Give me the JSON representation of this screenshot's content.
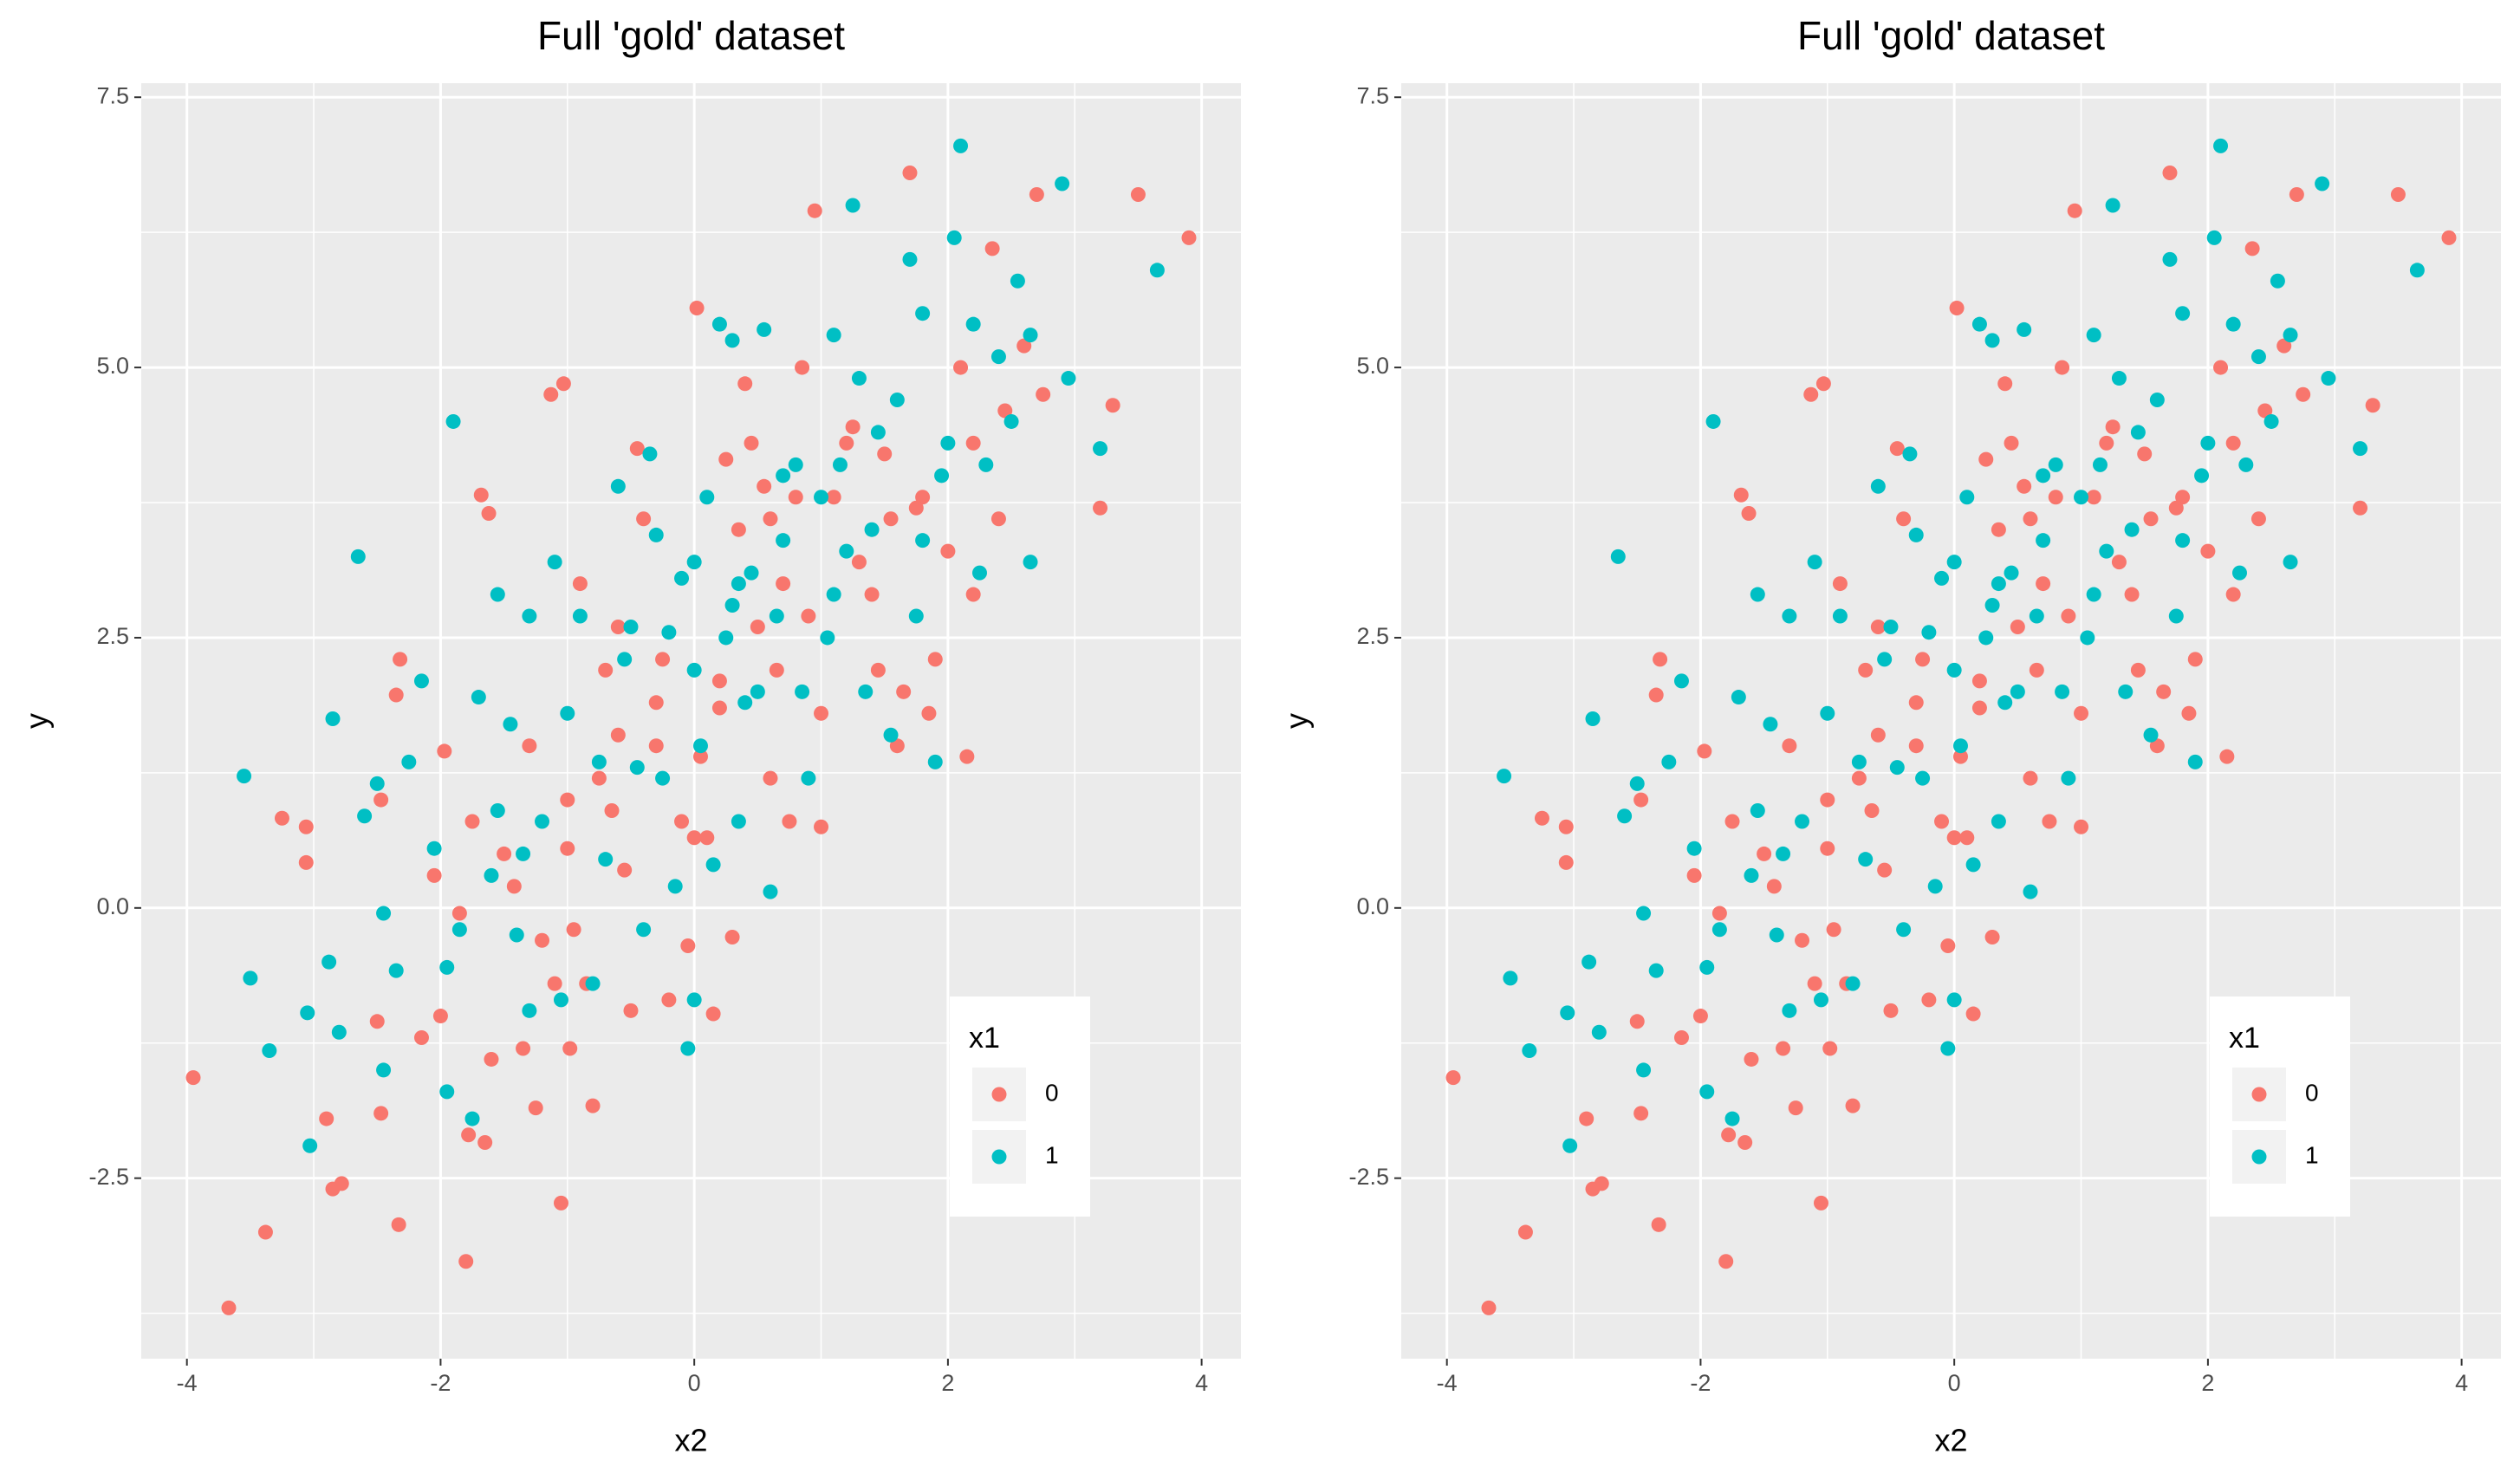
{
  "chart_data": [
    {
      "type": "scatter",
      "title": "Full 'gold' dataset",
      "x_label": "x2",
      "y_label": "y",
      "legend_title": "x1",
      "legend_position": "bottom-right",
      "grid": true,
      "xlim": [
        -4.36,
        4.31
      ],
      "ylim": [
        -4.17,
        7.63
      ],
      "xticks": [
        -4,
        -2,
        0,
        2,
        4
      ],
      "yticks": [
        -2.5,
        {
          "value": 0,
          "label": "0.0"
        },
        2.5,
        {
          "value": 5,
          "label": "5.0"
        },
        7.5
      ],
      "series": [
        {
          "name": "0",
          "color": "#F8766D",
          "x": [
            -3.95,
            -3.67,
            -3.38,
            -3.25,
            -3.06,
            -3.06,
            -2.9,
            -2.85,
            -2.78,
            -2.5,
            -2.47,
            -2.47,
            -2.33,
            -2.32,
            -2.35,
            -2.15,
            -2.0,
            -1.97,
            -1.8,
            -1.78,
            -1.65,
            -1.68,
            -1.62,
            -1.6,
            -1.5,
            -1.42,
            -1.35,
            -1.25,
            -1.2,
            -1.13,
            -1.1,
            -1.05,
            -1.03,
            -1.0,
            -0.98,
            -0.95,
            -0.85,
            -0.8,
            -0.75,
            -0.7,
            -0.6,
            -0.55,
            -0.5,
            -0.45,
            -0.4,
            -0.3,
            -0.25,
            -0.2,
            -0.1,
            -0.05,
            0.0,
            0.02,
            0.05,
            0.1,
            0.15,
            0.2,
            0.25,
            0.3,
            0.35,
            0.4,
            0.45,
            0.5,
            0.55,
            0.6,
            0.65,
            0.7,
            0.75,
            0.8,
            0.85,
            0.9,
            0.95,
            1.0,
            1.1,
            1.2,
            1.3,
            1.4,
            1.45,
            1.5,
            1.55,
            1.6,
            1.65,
            1.7,
            1.8,
            1.85,
            1.9,
            2.0,
            2.1,
            2.15,
            2.2,
            2.35,
            2.4,
            2.45,
            2.6,
            2.7,
            2.75,
            3.2,
            3.3,
            3.5,
            3.9,
            -1.75,
            -0.9,
            -0.3,
            0.6,
            1.0,
            -1.3,
            -1.0,
            -0.6,
            0.2,
            1.75,
            2.2,
            -2.05,
            -1.85,
            -0.65,
            1.25
          ],
          "y": [
            -1.57,
            -3.7,
            -3.0,
            0.83,
            0.42,
            0.75,
            -1.95,
            -2.6,
            -2.55,
            -1.05,
            -1.9,
            1.0,
            -2.93,
            2.3,
            1.97,
            -1.2,
            -1.0,
            1.45,
            -3.27,
            -2.1,
            -2.17,
            3.82,
            3.65,
            -1.4,
            0.5,
            0.2,
            -1.3,
            -1.85,
            -0.3,
            4.75,
            -0.7,
            -2.73,
            4.85,
            0.55,
            -1.3,
            -0.2,
            -0.7,
            -1.83,
            1.2,
            2.2,
            1.6,
            0.35,
            -0.95,
            4.25,
            3.6,
            1.9,
            2.3,
            -0.85,
            0.8,
            -0.35,
            0.65,
            5.55,
            1.4,
            0.65,
            -0.98,
            1.85,
            4.15,
            -0.27,
            3.5,
            4.85,
            4.3,
            2.6,
            3.9,
            1.2,
            2.2,
            3.0,
            0.8,
            3.8,
            5.0,
            2.7,
            6.45,
            0.75,
            3.8,
            4.3,
            3.2,
            2.9,
            2.2,
            4.2,
            3.6,
            1.5,
            2.0,
            6.8,
            3.8,
            1.8,
            2.3,
            3.3,
            5.0,
            1.4,
            4.3,
            6.1,
            3.6,
            4.6,
            5.2,
            6.6,
            4.75,
            3.7,
            4.65,
            6.6,
            6.2,
            0.8,
            3.0,
            1.5,
            3.6,
            1.8,
            1.5,
            1.0,
            2.6,
            2.1,
            3.7,
            2.9,
            0.3,
            -0.05,
            0.9,
            4.45
          ]
        },
        {
          "name": "1",
          "color": "#00BFC4",
          "x": [
            -3.55,
            -3.5,
            -3.35,
            -3.05,
            -3.03,
            -2.85,
            -2.88,
            -2.8,
            -2.65,
            -2.5,
            -2.45,
            -2.45,
            -2.35,
            -2.25,
            -2.15,
            -2.05,
            -1.95,
            -1.95,
            -1.9,
            -1.85,
            -1.75,
            -1.7,
            -1.6,
            -1.55,
            -1.45,
            -1.4,
            -1.3,
            -1.3,
            -1.2,
            -1.1,
            -1.05,
            -1.0,
            -0.9,
            -0.8,
            -0.7,
            -0.6,
            -0.55,
            -0.45,
            -0.4,
            -0.35,
            -0.3,
            -0.2,
            -0.15,
            -0.1,
            -0.05,
            0.0,
            0.0,
            0.05,
            0.1,
            0.15,
            0.2,
            0.25,
            0.3,
            0.35,
            0.4,
            0.45,
            0.55,
            0.6,
            0.65,
            0.7,
            0.8,
            0.85,
            0.9,
            1.0,
            1.05,
            1.1,
            1.15,
            1.2,
            1.25,
            1.3,
            1.35,
            1.45,
            1.55,
            1.6,
            1.7,
            1.75,
            1.8,
            1.95,
            2.05,
            2.1,
            2.2,
            2.25,
            2.3,
            2.4,
            2.5,
            2.55,
            2.65,
            2.65,
            2.9,
            2.95,
            3.2,
            3.65,
            0.3,
            -1.35,
            -0.75,
            0.0,
            0.7,
            1.4,
            2.0,
            -2.6,
            -1.55,
            -0.5,
            0.5,
            1.1,
            1.9,
            -0.25,
            0.35,
            1.8
          ],
          "y": [
            1.22,
            -0.65,
            -1.32,
            -0.97,
            -2.2,
            1.75,
            -0.5,
            -1.15,
            3.25,
            1.15,
            -1.5,
            -0.05,
            -0.58,
            1.35,
            2.1,
            0.55,
            -0.55,
            -1.7,
            4.5,
            -0.2,
            -1.95,
            1.95,
            0.3,
            2.9,
            1.7,
            -0.25,
            -0.95,
            2.7,
            0.8,
            3.2,
            -0.85,
            1.8,
            2.7,
            -0.7,
            0.45,
            3.9,
            2.3,
            1.3,
            -0.2,
            4.2,
            3.45,
            2.55,
            0.2,
            3.05,
            -1.3,
            2.2,
            -0.85,
            1.5,
            3.8,
            0.4,
            5.4,
            2.5,
            2.8,
            0.8,
            1.9,
            3.1,
            5.35,
            0.15,
            2.7,
            3.4,
            4.1,
            2.0,
            1.2,
            3.8,
            2.5,
            5.3,
            4.1,
            3.3,
            6.5,
            4.9,
            2.0,
            4.4,
            1.6,
            4.7,
            6.0,
            2.7,
            5.5,
            4.0,
            6.2,
            7.05,
            5.4,
            3.1,
            4.1,
            5.1,
            4.5,
            5.8,
            5.3,
            3.2,
            6.7,
            4.9,
            4.25,
            5.9,
            5.25,
            0.5,
            1.35,
            3.2,
            4.0,
            3.5,
            4.3,
            0.85,
            0.9,
            2.6,
            2.0,
            2.9,
            1.35,
            1.2,
            3.0,
            3.4
          ]
        }
      ]
    },
    {
      "type": "scatter",
      "title": "Full 'gold' dataset",
      "x_label": "x2",
      "y_label": "y",
      "legend_title": "x1",
      "legend_position": "bottom-right",
      "grid": true,
      "xlim": [
        -4.36,
        4.31
      ],
      "ylim": [
        -4.17,
        7.63
      ],
      "xticks": [
        -4,
        -2,
        0,
        2,
        4
      ],
      "yticks": [
        -2.5,
        {
          "value": 0,
          "label": "0.0"
        },
        2.5,
        {
          "value": 5,
          "label": "5.0"
        },
        7.5
      ],
      "series": [
        {
          "name": "0",
          "color": "#F8766D",
          "x": [
            -3.95,
            -3.67,
            -3.38,
            -3.25,
            -3.06,
            -3.06,
            -2.9,
            -2.85,
            -2.78,
            -2.5,
            -2.47,
            -2.47,
            -2.33,
            -2.32,
            -2.35,
            -2.15,
            -2.0,
            -1.97,
            -1.8,
            -1.78,
            -1.65,
            -1.68,
            -1.62,
            -1.6,
            -1.5,
            -1.42,
            -1.35,
            -1.25,
            -1.2,
            -1.13,
            -1.1,
            -1.05,
            -1.03,
            -1.0,
            -0.98,
            -0.95,
            -0.85,
            -0.8,
            -0.75,
            -0.7,
            -0.6,
            -0.55,
            -0.5,
            -0.45,
            -0.4,
            -0.3,
            -0.25,
            -0.2,
            -0.1,
            -0.05,
            0.0,
            0.02,
            0.05,
            0.1,
            0.15,
            0.2,
            0.25,
            0.3,
            0.35,
            0.4,
            0.45,
            0.5,
            0.55,
            0.6,
            0.65,
            0.7,
            0.75,
            0.8,
            0.85,
            0.9,
            0.95,
            1.0,
            1.1,
            1.2,
            1.3,
            1.4,
            1.45,
            1.5,
            1.55,
            1.6,
            1.65,
            1.7,
            1.8,
            1.85,
            1.9,
            2.0,
            2.1,
            2.15,
            2.2,
            2.35,
            2.4,
            2.45,
            2.6,
            2.7,
            2.75,
            3.2,
            3.3,
            3.5,
            3.9,
            -1.75,
            -0.9,
            -0.3,
            0.6,
            1.0,
            -1.3,
            -1.0,
            -0.6,
            0.2,
            1.75,
            2.2,
            -2.05,
            -1.85,
            -0.65,
            1.25
          ],
          "y": [
            -1.57,
            -3.7,
            -3.0,
            0.83,
            0.42,
            0.75,
            -1.95,
            -2.6,
            -2.55,
            -1.05,
            -1.9,
            1.0,
            -2.93,
            2.3,
            1.97,
            -1.2,
            -1.0,
            1.45,
            -3.27,
            -2.1,
            -2.17,
            3.82,
            3.65,
            -1.4,
            0.5,
            0.2,
            -1.3,
            -1.85,
            -0.3,
            4.75,
            -0.7,
            -2.73,
            4.85,
            0.55,
            -1.3,
            -0.2,
            -0.7,
            -1.83,
            1.2,
            2.2,
            1.6,
            0.35,
            -0.95,
            4.25,
            3.6,
            1.9,
            2.3,
            -0.85,
            0.8,
            -0.35,
            0.65,
            5.55,
            1.4,
            0.65,
            -0.98,
            1.85,
            4.15,
            -0.27,
            3.5,
            4.85,
            4.3,
            2.6,
            3.9,
            1.2,
            2.2,
            3.0,
            0.8,
            3.8,
            5.0,
            2.7,
            6.45,
            0.75,
            3.8,
            4.3,
            3.2,
            2.9,
            2.2,
            4.2,
            3.6,
            1.5,
            2.0,
            6.8,
            3.8,
            1.8,
            2.3,
            3.3,
            5.0,
            1.4,
            4.3,
            6.1,
            3.6,
            4.6,
            5.2,
            6.6,
            4.75,
            3.7,
            4.65,
            6.6,
            6.2,
            0.8,
            3.0,
            1.5,
            3.6,
            1.8,
            1.5,
            1.0,
            2.6,
            2.1,
            3.7,
            2.9,
            0.3,
            -0.05,
            0.9,
            4.45
          ]
        },
        {
          "name": "1",
          "color": "#00BFC4",
          "x": [
            -3.55,
            -3.5,
            -3.35,
            -3.05,
            -3.03,
            -2.85,
            -2.88,
            -2.8,
            -2.65,
            -2.5,
            -2.45,
            -2.45,
            -2.35,
            -2.25,
            -2.15,
            -2.05,
            -1.95,
            -1.95,
            -1.9,
            -1.85,
            -1.75,
            -1.7,
            -1.6,
            -1.55,
            -1.45,
            -1.4,
            -1.3,
            -1.3,
            -1.2,
            -1.1,
            -1.05,
            -1.0,
            -0.9,
            -0.8,
            -0.7,
            -0.6,
            -0.55,
            -0.45,
            -0.4,
            -0.35,
            -0.3,
            -0.2,
            -0.15,
            -0.1,
            -0.05,
            0.0,
            0.0,
            0.05,
            0.1,
            0.15,
            0.2,
            0.25,
            0.3,
            0.35,
            0.4,
            0.45,
            0.55,
            0.6,
            0.65,
            0.7,
            0.8,
            0.85,
            0.9,
            1.0,
            1.05,
            1.1,
            1.15,
            1.2,
            1.25,
            1.3,
            1.35,
            1.45,
            1.55,
            1.6,
            1.7,
            1.75,
            1.8,
            1.95,
            2.05,
            2.1,
            2.2,
            2.25,
            2.3,
            2.4,
            2.5,
            2.55,
            2.65,
            2.65,
            2.9,
            2.95,
            3.2,
            3.65,
            0.3,
            -1.35,
            -0.75,
            0.0,
            0.7,
            1.4,
            2.0,
            -2.6,
            -1.55,
            -0.5,
            0.5,
            1.1,
            1.9,
            -0.25,
            0.35,
            1.8
          ],
          "y": [
            1.22,
            -0.65,
            -1.32,
            -0.97,
            -2.2,
            1.75,
            -0.5,
            -1.15,
            3.25,
            1.15,
            -1.5,
            -0.05,
            -0.58,
            1.35,
            2.1,
            0.55,
            -0.55,
            -1.7,
            4.5,
            -0.2,
            -1.95,
            1.95,
            0.3,
            2.9,
            1.7,
            -0.25,
            -0.95,
            2.7,
            0.8,
            3.2,
            -0.85,
            1.8,
            2.7,
            -0.7,
            0.45,
            3.9,
            2.3,
            1.3,
            -0.2,
            4.2,
            3.45,
            2.55,
            0.2,
            3.05,
            -1.3,
            2.2,
            -0.85,
            1.5,
            3.8,
            0.4,
            5.4,
            2.5,
            2.8,
            0.8,
            1.9,
            3.1,
            5.35,
            0.15,
            2.7,
            3.4,
            4.1,
            2.0,
            1.2,
            3.8,
            2.5,
            5.3,
            4.1,
            3.3,
            6.5,
            4.9,
            2.0,
            4.4,
            1.6,
            4.7,
            6.0,
            2.7,
            5.5,
            4.0,
            6.2,
            7.05,
            5.4,
            3.1,
            4.1,
            5.1,
            4.5,
            5.8,
            5.3,
            3.2,
            6.7,
            4.9,
            4.25,
            5.9,
            5.25,
            0.5,
            1.35,
            3.2,
            4.0,
            3.5,
            4.3,
            0.85,
            0.9,
            2.6,
            2.0,
            2.9,
            1.35,
            1.2,
            3.0,
            3.4
          ]
        }
      ]
    }
  ]
}
